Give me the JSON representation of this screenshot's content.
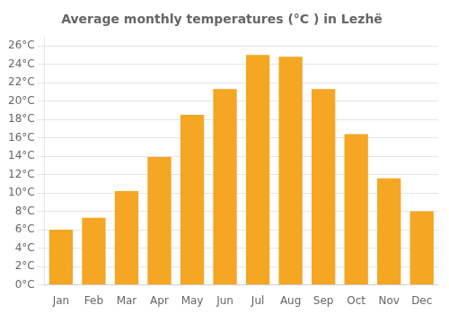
{
  "chart_data": {
    "type": "bar",
    "title": "Average monthly temperatures (°C ) in Lezhë",
    "categories": [
      "Jan",
      "Feb",
      "Mar",
      "Apr",
      "May",
      "Jun",
      "Jul",
      "Aug",
      "Sep",
      "Oct",
      "Nov",
      "Dec"
    ],
    "values": [
      6.0,
      7.3,
      10.2,
      13.9,
      18.5,
      21.3,
      25.0,
      24.8,
      21.3,
      16.4,
      11.6,
      8.0
    ],
    "color": "#F5A623",
    "ylim": [
      0,
      27
    ],
    "yticks": [
      {
        "value": 0,
        "label": "0°C"
      },
      {
        "value": 2,
        "label": "2°C"
      },
      {
        "value": 4,
        "label": "4°C"
      },
      {
        "value": 6,
        "label": "6°C"
      },
      {
        "value": 8,
        "label": "8°C"
      },
      {
        "value": 10,
        "label": "10°C"
      },
      {
        "value": 12,
        "label": "12°C"
      },
      {
        "value": 14,
        "label": "14°C"
      },
      {
        "value": 16,
        "label": "16°C"
      },
      {
        "value": 18,
        "label": "18°C"
      },
      {
        "value": 20,
        "label": "20°C"
      },
      {
        "value": 22,
        "label": "22°C"
      },
      {
        "value": 24,
        "label": "24°C"
      },
      {
        "value": 26,
        "label": "26°C"
      }
    ],
    "grid": true
  }
}
